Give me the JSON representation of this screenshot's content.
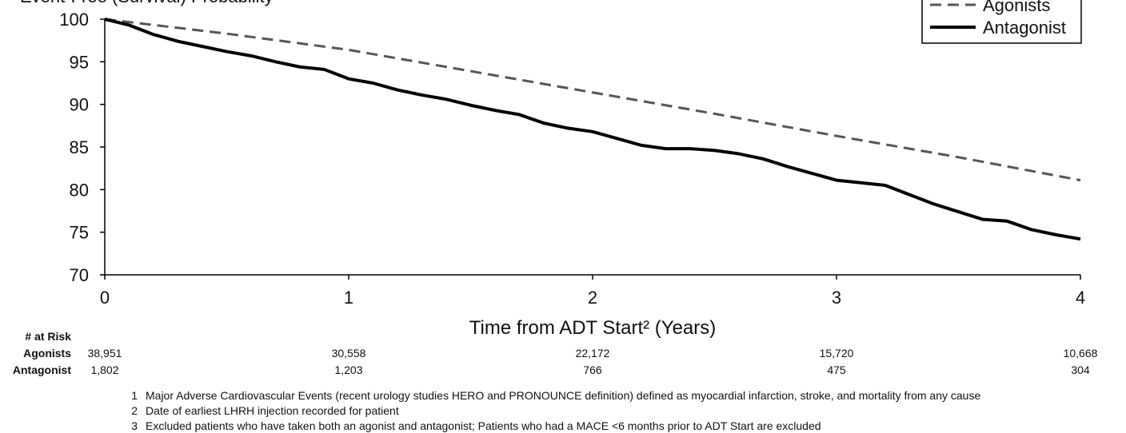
{
  "chart_data": {
    "type": "line",
    "ylabel": "Event-Free (Survival) Probability",
    "xlabel": "Time from ADT Start² (Years)",
    "xlim": [
      0,
      4
    ],
    "xticks": [
      0,
      1,
      2,
      3,
      4
    ],
    "ylim": [
      70,
      100
    ],
    "yticks": [
      70,
      75,
      80,
      85,
      90,
      95,
      100
    ],
    "grid": false,
    "legend": "upper right",
    "series": [
      {
        "name": "Agonists",
        "color": "#555555",
        "style": "dashed",
        "x": [
          0,
          0.5,
          1,
          1.5,
          2,
          2.5,
          3,
          3.5,
          4
        ],
        "values": [
          100,
          98.3,
          96.4,
          93.9,
          91.4,
          88.9,
          86.3,
          83.8,
          81.1
        ]
      },
      {
        "name": "Antagonist",
        "color": "#000000",
        "style": "solid",
        "x": [
          0,
          0.1,
          0.2,
          0.3,
          0.4,
          0.5,
          0.6,
          0.7,
          0.8,
          0.9,
          1.0,
          1.1,
          1.2,
          1.3,
          1.4,
          1.5,
          1.6,
          1.7,
          1.8,
          1.9,
          2.0,
          2.1,
          2.2,
          2.3,
          2.4,
          2.5,
          2.6,
          2.7,
          2.8,
          2.9,
          3.0,
          3.1,
          3.2,
          3.3,
          3.4,
          3.5,
          3.6,
          3.7,
          3.8,
          3.9,
          4.0
        ],
        "values": [
          100,
          99.3,
          98.2,
          97.4,
          96.8,
          96.2,
          95.7,
          95.0,
          94.4,
          94.1,
          93.0,
          92.5,
          91.7,
          91.1,
          90.6,
          89.9,
          89.3,
          88.8,
          87.8,
          87.2,
          86.8,
          86.0,
          85.2,
          84.8,
          84.8,
          84.6,
          84.2,
          83.6,
          82.7,
          81.9,
          81.1,
          80.8,
          80.5,
          79.4,
          78.3,
          77.4,
          76.5,
          76.3,
          75.3,
          74.7,
          74.2
        ]
      }
    ],
    "risk_table": {
      "title": "# at Risk",
      "rows": [
        {
          "name": "Agonists",
          "values": [
            "38,951",
            "30,558",
            "22,172",
            "15,720",
            "10,668"
          ]
        },
        {
          "name": "Antagonist",
          "values": [
            "1,802",
            "1,203",
            "766",
            "475",
            "304"
          ]
        }
      ]
    },
    "footnotes": [
      {
        "number": "1",
        "text": "Major Adverse Cardiovascular Events (recent urology studies HERO and PRONOUNCE definition) defined as myocardial infarction, stroke, and mortality from any cause"
      },
      {
        "number": "2",
        "text": "Date of earliest LHRH injection recorded for patient"
      },
      {
        "number": "3",
        "text": "Excluded patients who have taken both an agonist and antagonist; Patients who had a MACE <6 months prior to ADT Start are excluded"
      }
    ]
  }
}
